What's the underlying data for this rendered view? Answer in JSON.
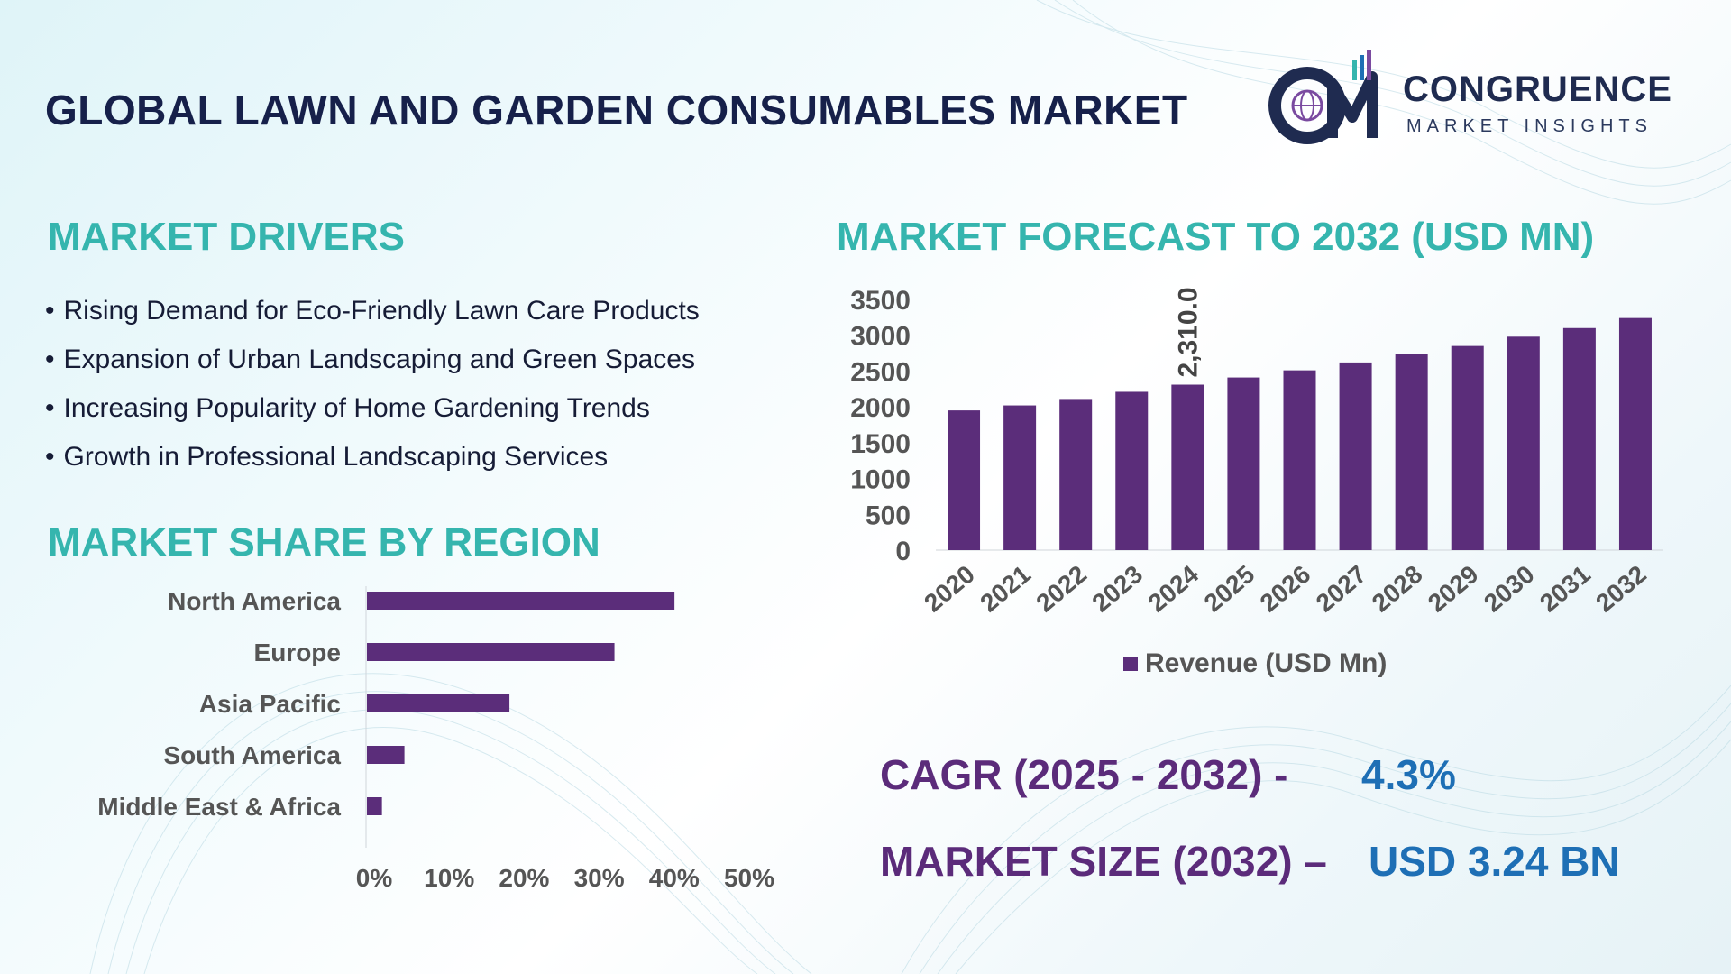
{
  "header": {
    "title": "GLOBAL LAWN AND GARDEN CONSUMABLES MARKET"
  },
  "logo": {
    "name": "CONGRUENCE",
    "subtitle": "MARKET INSIGHTS",
    "icon": "globe-bar-chart-logo-icon"
  },
  "drivers": {
    "title": "MARKET DRIVERS",
    "items": [
      "Rising Demand for Eco-Friendly Lawn Care Products",
      "Expansion of Urban Landscaping and Green Spaces",
      "Increasing Popularity of Home Gardening Trends",
      "Growth in Professional Landscaping Services"
    ]
  },
  "region": {
    "title": "MARKET SHARE BY REGION"
  },
  "forecast": {
    "title": "MARKET FORECAST TO 2032 (USD MN)"
  },
  "summary": {
    "cagr_label": "CAGR (2025 - 2032) -",
    "cagr_value": "4.3%",
    "size_label": "MARKET SIZE (2032) –",
    "size_value": "USD 3.24 BN"
  },
  "colors": {
    "bar": "#5b2d7a",
    "accent": "#35b5ae",
    "highlight": "#1e6fb5",
    "title": "#16204a"
  },
  "chart_data": [
    {
      "type": "bar",
      "orientation": "horizontal",
      "title": "MARKET SHARE BY REGION",
      "categories": [
        "North America",
        "Europe",
        "Asia Pacific",
        "South America",
        "Middle East & Africa"
      ],
      "values": [
        41,
        33,
        19,
        5,
        2
      ],
      "xlim": [
        0,
        50
      ],
      "ticks": [
        0,
        10,
        20,
        30,
        40,
        50
      ],
      "tick_labels": [
        "0%",
        "10%",
        "20%",
        "30%",
        "40%",
        "50%"
      ]
    },
    {
      "type": "bar",
      "title": "MARKET FORECAST TO 2032 (USD MN)",
      "categories": [
        "2020",
        "2021",
        "2022",
        "2023",
        "2024",
        "2025",
        "2026",
        "2027",
        "2028",
        "2029",
        "2030",
        "2031",
        "2032"
      ],
      "values": [
        1950,
        2020,
        2110,
        2210,
        2310,
        2410,
        2510,
        2620,
        2740,
        2850,
        2980,
        3100,
        3240
      ],
      "ylim": [
        0,
        3500
      ],
      "yticks": [
        "0",
        "500",
        "1000",
        "1500",
        "2000",
        "2500",
        "3000",
        "3500"
      ],
      "data_label": {
        "index": 4,
        "text": "2,310.0"
      },
      "legend": "Revenue (USD Mn)",
      "legend_position": "bottom"
    }
  ]
}
